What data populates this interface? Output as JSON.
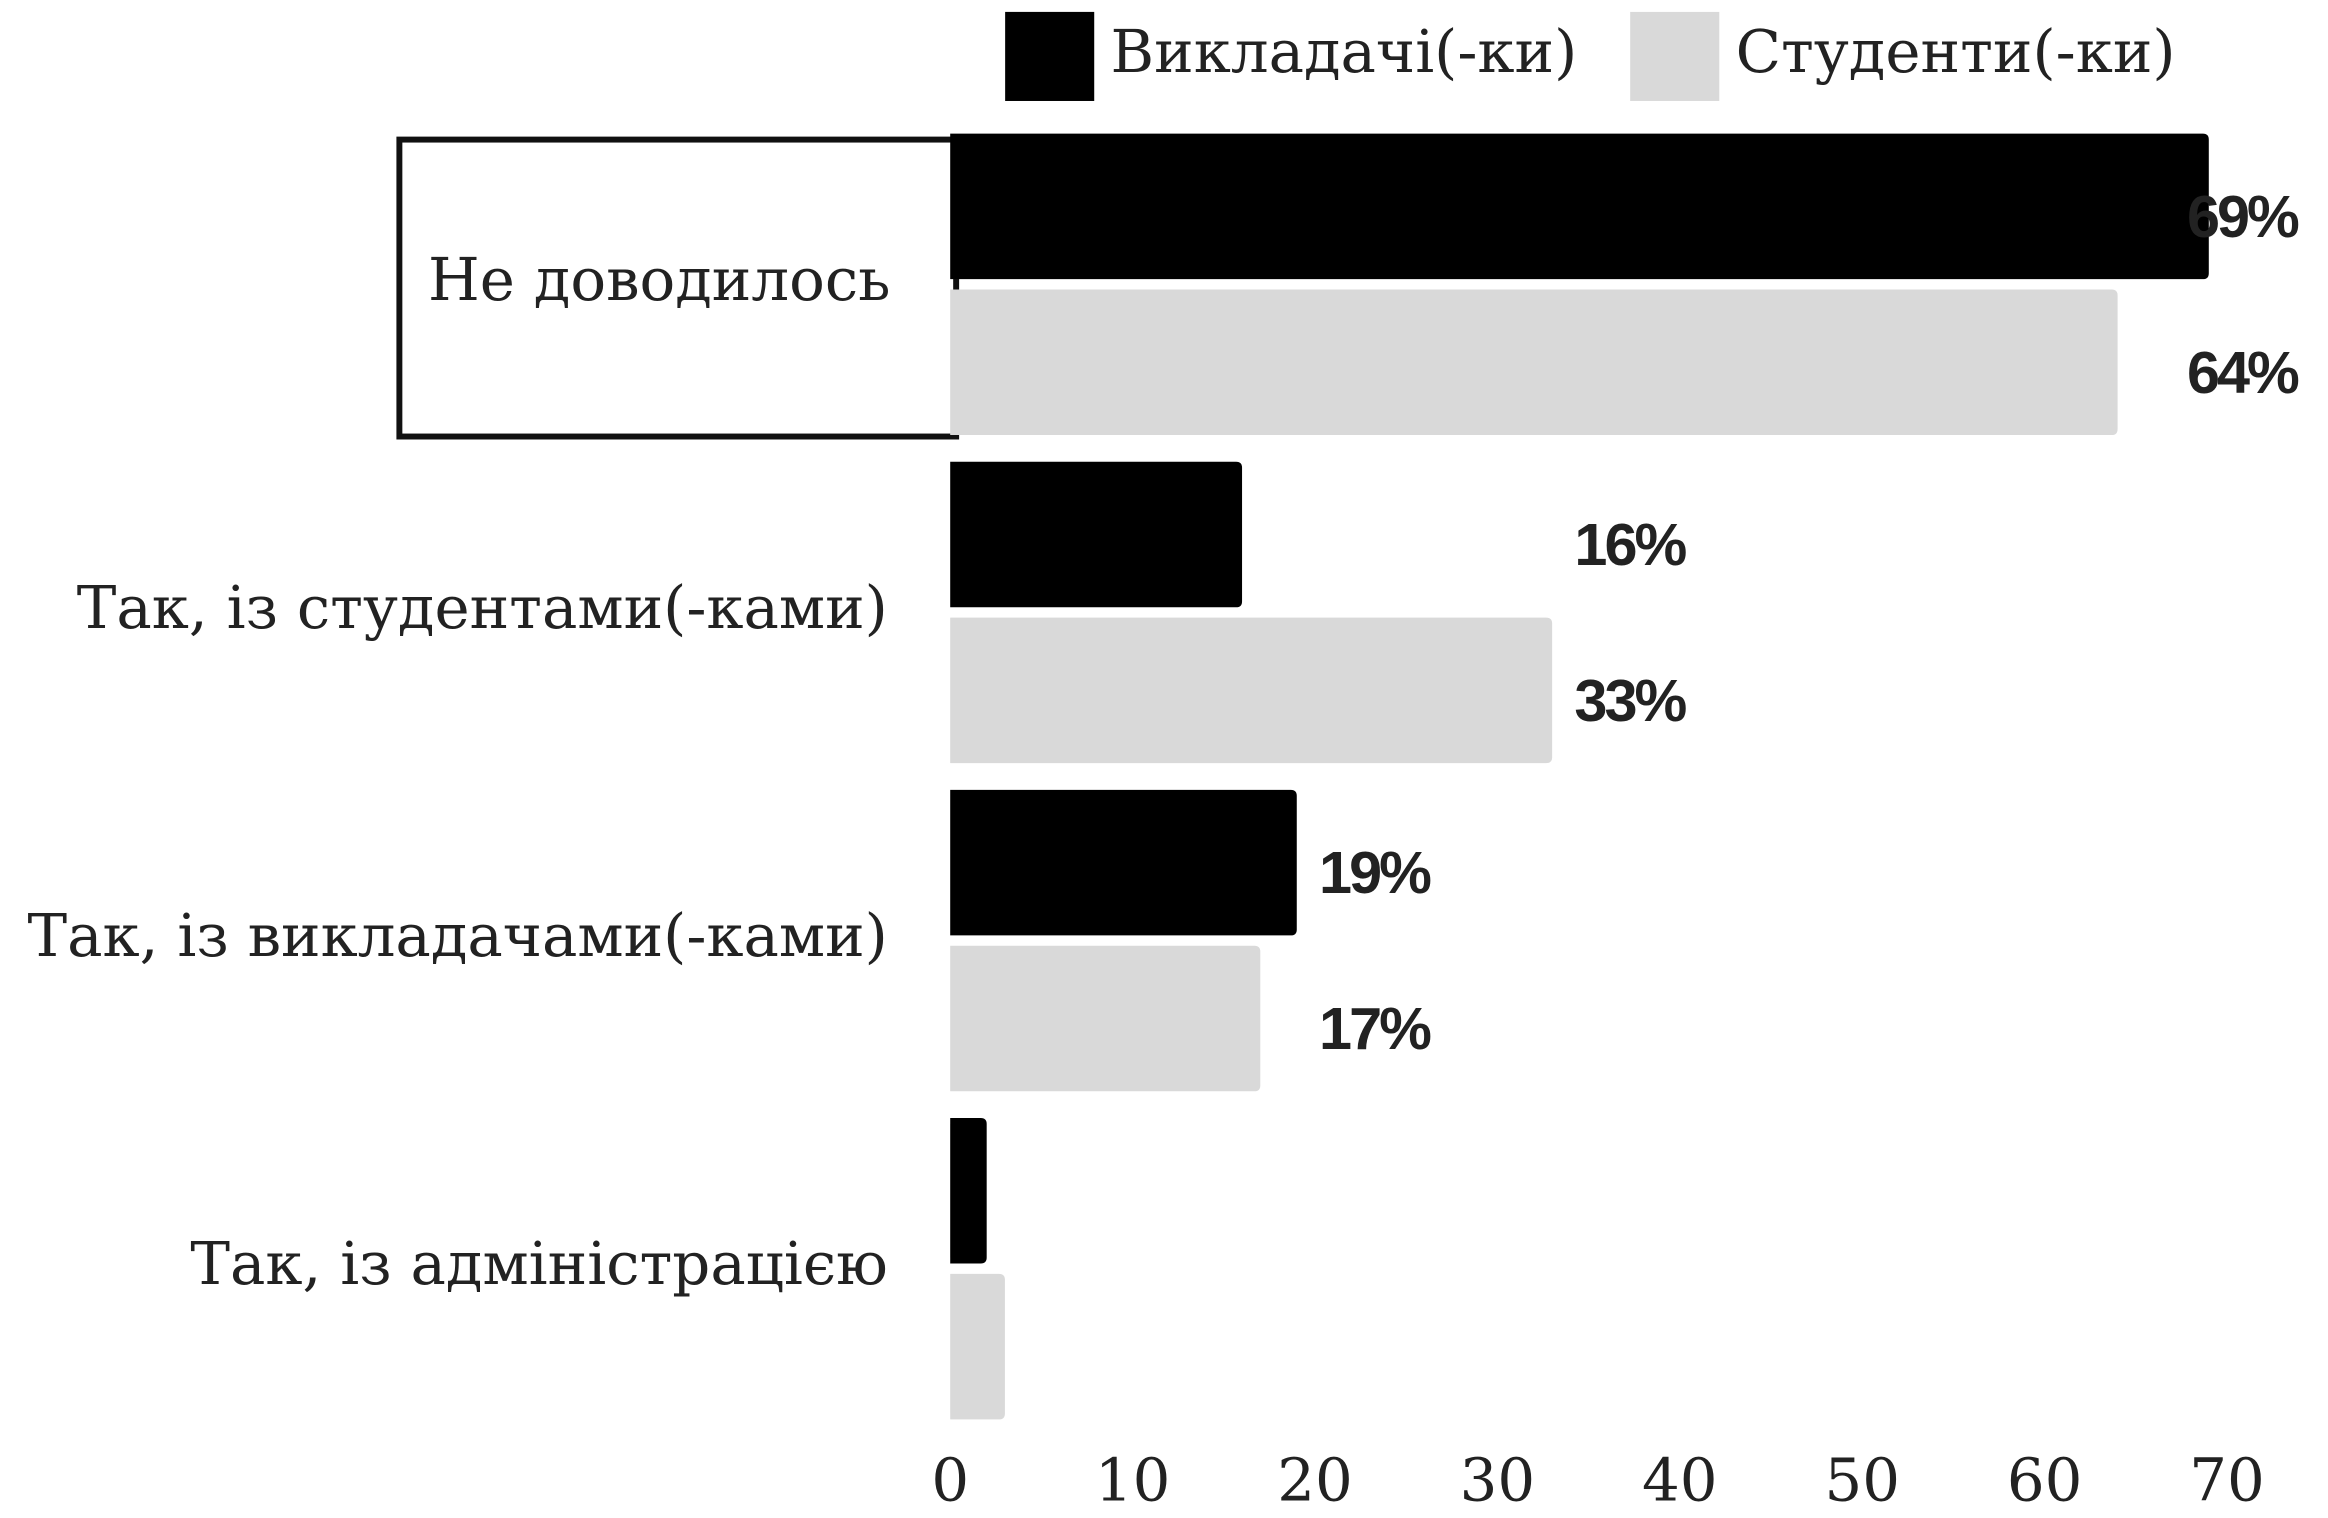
{
  "chart_data": {
    "type": "barh",
    "categories": [
      "Не доводилось",
      "Так, із студентами(-ками)",
      "Так, із викладачами(-ками)",
      "Так, із адміністрацією"
    ],
    "series": [
      {
        "name": "Викладачі(-ки)",
        "color": "#000000",
        "values": [
          69,
          16,
          19,
          2
        ],
        "value_labels": [
          "69%",
          "16%",
          "19%",
          null
        ]
      },
      {
        "name": "Студенти(-ки)",
        "color": "#d9d9d9",
        "values": [
          64,
          33,
          17,
          3
        ],
        "value_labels": [
          "64%",
          "33%",
          "17%",
          null
        ]
      }
    ],
    "xlim": [
      0,
      70
    ],
    "xticks": [
      0,
      10,
      20,
      30,
      40,
      50,
      60,
      70
    ],
    "highlighted_category": 0,
    "legend": "top"
  }
}
